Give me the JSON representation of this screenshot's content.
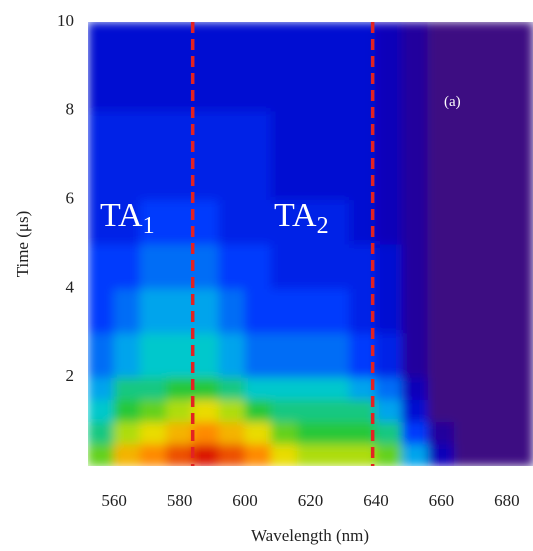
{
  "chart_data": {
    "type": "heatmap",
    "xlabel": "Wavelength (nm)",
    "ylabel": "Time (μs)",
    "xlim": [
      552,
      688
    ],
    "ylim": [
      0,
      10
    ],
    "xticks": [
      560,
      580,
      600,
      620,
      640,
      660,
      680
    ],
    "yticks": [
      2,
      4,
      6,
      8,
      10
    ],
    "x_edges": [
      552,
      560,
      568,
      576,
      584,
      592,
      600,
      608,
      616,
      624,
      632,
      640,
      648,
      656,
      664,
      672,
      680,
      688
    ],
    "y_edges": [
      0,
      0.5,
      1,
      1.5,
      2,
      3,
      4,
      5,
      6,
      8,
      10
    ],
    "z": [
      [
        6,
        7.5,
        8,
        8.5,
        9,
        8.5,
        8,
        7,
        6.5,
        6.5,
        6.5,
        6,
        4,
        1.5,
        0.5,
        0.5,
        0.5
      ],
      [
        5,
        6.5,
        7,
        7.5,
        8,
        7.5,
        7,
        6,
        5.5,
        5.5,
        5.5,
        5,
        3,
        1,
        0.5,
        0.5,
        0.5
      ],
      [
        4.5,
        5.5,
        6,
        6.5,
        7,
        6.5,
        5.5,
        5,
        5,
        5,
        5,
        4,
        2,
        0.5,
        0.5,
        0.5,
        0.5
      ],
      [
        4,
        5,
        5,
        5.5,
        5.5,
        5,
        4.5,
        4.5,
        4.5,
        4.5,
        4,
        3.5,
        1.5,
        0.5,
        0.5,
        0.5,
        0.5
      ],
      [
        3.5,
        4,
        4.5,
        4.5,
        4.5,
        4,
        3.5,
        3.5,
        3.5,
        3.5,
        3,
        2.5,
        1,
        0.5,
        0.5,
        0.5,
        0.5
      ],
      [
        3,
        3.5,
        4,
        4,
        4,
        3.5,
        3,
        3,
        3,
        3,
        2.5,
        2,
        1,
        0.5,
        0.5,
        0.5,
        0.5
      ],
      [
        3,
        3,
        3.5,
        3.5,
        3.5,
        3,
        3,
        2.5,
        2.5,
        2.5,
        2.5,
        2,
        1,
        0.5,
        0.5,
        0.5,
        0.5
      ],
      [
        2.5,
        2.5,
        3,
        3,
        3,
        2.5,
        2.5,
        2.5,
        2.5,
        2.5,
        2,
        1.5,
        1,
        0.5,
        0.5,
        0.5,
        0.5
      ],
      [
        2.5,
        2.5,
        2.5,
        2.5,
        2.5,
        2.5,
        2.5,
        2,
        2,
        2,
        2,
        1.5,
        1,
        0.5,
        0.5,
        0.5,
        0.5
      ],
      [
        2,
        2,
        2,
        2,
        2,
        2,
        2,
        2,
        2,
        2,
        2,
        1.5,
        1,
        0.5,
        0.5,
        0.5,
        0.5
      ]
    ],
    "vlines": [
      584,
      639
    ],
    "vline_color": "#e32222",
    "annotations": [
      {
        "text": "TA",
        "subscript": "1"
      },
      {
        "text": "TA",
        "subscript": "2"
      },
      {
        "text": "(a)"
      }
    ]
  }
}
